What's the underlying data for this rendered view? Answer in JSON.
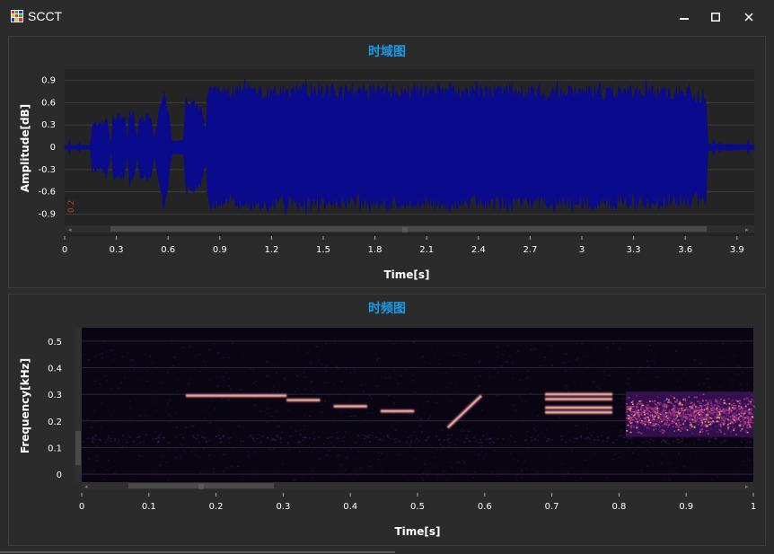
{
  "window": {
    "title": "SCCT",
    "minimize_glyph": "▬",
    "maximize_glyph": "☐",
    "close_glyph": "✕",
    "icon": "grid-app-icon"
  },
  "colors": {
    "background": "#2b2b2b",
    "plot_bg": "#242424",
    "title_blue": "#1a9be6",
    "waveform": "#0a0a8c",
    "spectrogram_bg": "#0a0512",
    "spectrogram_hot": "#f3a66a",
    "spectrogram_mid": "#b23a8a",
    "spectrogram_low": "#3a1a5e"
  },
  "time_domain": {
    "title": "时域图",
    "chart_data": {
      "type": "line",
      "xlabel": "Time[s]",
      "ylabel": "Amplitude[dB]",
      "xlim": [
        0,
        4.0
      ],
      "ylim": [
        -1.05,
        1.05
      ],
      "x_ticks": [
        "0",
        "0.3",
        "0.6",
        "0.9",
        "1.2",
        "1.5",
        "1.8",
        "2.1",
        "2.4",
        "2.7",
        "3",
        "3.3",
        "3.6",
        "3.9"
      ],
      "x_tick_values": [
        0,
        0.3,
        0.6,
        0.9,
        1.2,
        1.5,
        1.8,
        2.1,
        2.4,
        2.7,
        3,
        3.3,
        3.6,
        3.9
      ],
      "y_ticks": [
        "0.9",
        "0.6",
        "0.3",
        "0",
        "-0.3",
        "-0.6",
        "-0.9"
      ],
      "y_tick_values": [
        0.9,
        0.6,
        0.3,
        0,
        -0.3,
        -0.6,
        -0.9
      ],
      "grid": true,
      "series": [
        {
          "envelope": [
            [
              0.0,
              0.02
            ],
            [
              0.15,
              0.03
            ],
            [
              0.16,
              0.35
            ],
            [
              0.22,
              0.35
            ],
            [
              0.25,
              0.4
            ],
            [
              0.27,
              0.0
            ],
            [
              0.28,
              0.45
            ],
            [
              0.35,
              0.45
            ],
            [
              0.36,
              0.1
            ],
            [
              0.38,
              0.5
            ],
            [
              0.4,
              0.5
            ],
            [
              0.42,
              0.1
            ],
            [
              0.44,
              0.5
            ],
            [
              0.5,
              0.45
            ],
            [
              0.52,
              0.1
            ],
            [
              0.55,
              0.55
            ],
            [
              0.58,
              0.95
            ],
            [
              0.6,
              0.6
            ],
            [
              0.62,
              0.1
            ],
            [
              0.69,
              0.1
            ],
            [
              0.7,
              0.65
            ],
            [
              0.78,
              0.65
            ],
            [
              0.8,
              0.5
            ],
            [
              0.82,
              0.2
            ],
            [
              0.83,
              0.85
            ],
            [
              1.0,
              0.85
            ],
            [
              1.5,
              0.85
            ],
            [
              2.0,
              0.85
            ],
            [
              2.5,
              0.85
            ],
            [
              3.0,
              0.85
            ],
            [
              3.5,
              0.85
            ],
            [
              3.72,
              0.8
            ],
            [
              3.73,
              0.05
            ],
            [
              3.9,
              0.04
            ],
            [
              4.0,
              0.03
            ]
          ]
        }
      ]
    },
    "axis_marker": "0.2",
    "scroll_grip": "|||"
  },
  "time_frequency": {
    "title": "时频图",
    "chart_data": {
      "type": "heatmap",
      "xlabel": "Time[s]",
      "ylabel": "Frequency[kHz]",
      "xlim": [
        0,
        1
      ],
      "ylim": [
        -0.03,
        0.55
      ],
      "x_ticks": [
        "0",
        "0.1",
        "0.2",
        "0.3",
        "0.4",
        "0.5",
        "0.6",
        "0.7",
        "0.8",
        "0.9",
        "1"
      ],
      "x_tick_values": [
        0,
        0.1,
        0.2,
        0.3,
        0.4,
        0.5,
        0.6,
        0.7,
        0.8,
        0.9,
        1
      ],
      "y_ticks": [
        "0.5",
        "0.4",
        "0.3",
        "0.2",
        "0.1",
        "0"
      ],
      "y_tick_values": [
        0.5,
        0.4,
        0.3,
        0.2,
        0.1,
        0
      ],
      "tones": [
        {
          "t0": 0.155,
          "t1": 0.305,
          "f0": 0.295,
          "f1": 0.295
        },
        {
          "t0": 0.305,
          "t1": 0.355,
          "f0": 0.278,
          "f1": 0.278
        },
        {
          "t0": 0.375,
          "t1": 0.425,
          "f0": 0.255,
          "f1": 0.255
        },
        {
          "t0": 0.445,
          "t1": 0.495,
          "f0": 0.237,
          "f1": 0.237
        },
        {
          "t0": 0.545,
          "t1": 0.595,
          "f0": 0.175,
          "f1": 0.295
        },
        {
          "t0": 0.69,
          "t1": 0.79,
          "f0": 0.3,
          "f1": 0.3
        },
        {
          "t0": 0.69,
          "t1": 0.79,
          "f0": 0.282,
          "f1": 0.282
        },
        {
          "t0": 0.69,
          "t1": 0.79,
          "f0": 0.25,
          "f1": 0.25
        },
        {
          "t0": 0.69,
          "t1": 0.79,
          "f0": 0.232,
          "f1": 0.232
        }
      ],
      "noise_band": {
        "t0": 0.81,
        "t1": 1.0,
        "f0": 0.14,
        "f1": 0.31
      }
    },
    "scroll_grip": "|||"
  }
}
